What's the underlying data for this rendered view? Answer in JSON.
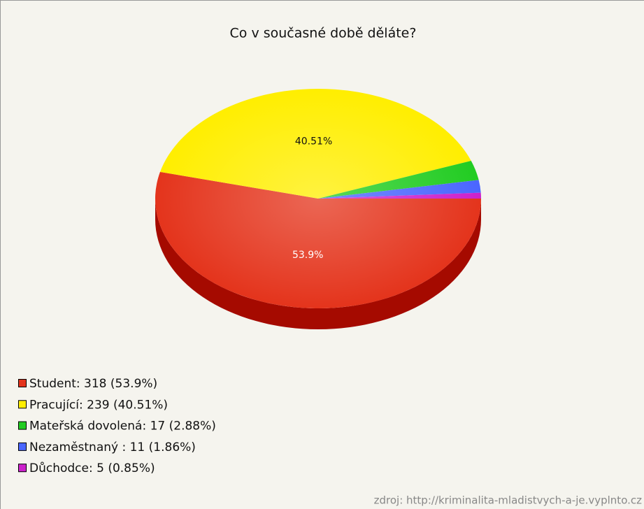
{
  "chart_data": {
    "type": "pie",
    "title": "Co v současné době děláte?",
    "categories": [
      "Student",
      "Pracující",
      "Mateřská dovolená",
      "Nezaměstnaný",
      "Důchodce"
    ],
    "values": [
      53.9,
      40.51,
      2.88,
      1.86,
      0.85
    ],
    "value_labels": [
      "53.9%",
      "40.51%",
      null,
      null,
      null
    ],
    "legend_labels": [
      "Student: 318 (53.9%)",
      "Pracující: 239 (40.51%)",
      "Mateřská dovolená: 17 (2.88%)",
      "Nezaměstnaný : 11 (1.86%)",
      "Důchodce: 5 (0.85%)"
    ],
    "colors": [
      "#e4341c",
      "#ffee00",
      "#22cc22",
      "#4a66ff",
      "#cc22cc"
    ],
    "side_colors": [
      "#a50a00",
      "#b8a800",
      "#118811",
      "#2233aa",
      "#881188"
    ],
    "source": "zdroj: http://kriminalita-mladistvych-a-je.vyplnto.cz"
  }
}
